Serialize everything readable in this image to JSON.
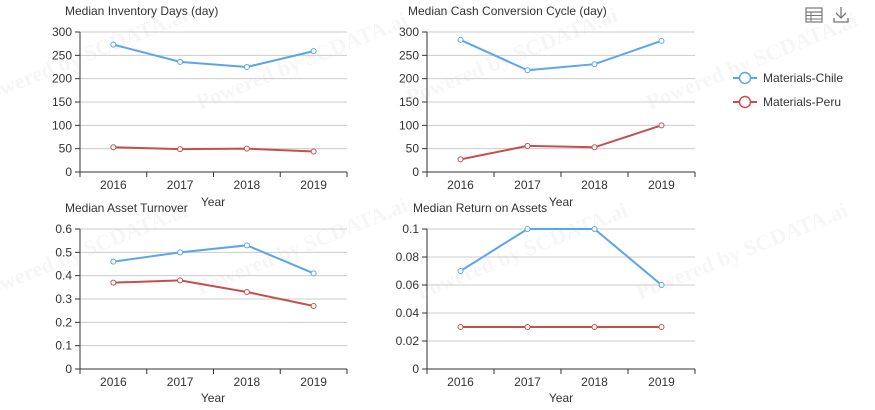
{
  "watermark": "Powered by SCDATA.ai",
  "toolbar": {
    "icons": [
      "data-view-icon",
      "download-icon"
    ]
  },
  "legend": [
    {
      "name": "Materials-Chile",
      "color": "#5aa5ec"
    },
    {
      "name": "Materials-Peru",
      "color": "#c4504e"
    }
  ],
  "chart_data": [
    {
      "type": "line",
      "title": "Median Inventory Days (day)",
      "xlabel": "Year",
      "ylabel": "",
      "categories": [
        "2016",
        "2017",
        "2018",
        "2019"
      ],
      "ylim": [
        0,
        300
      ],
      "yticks": [
        "0",
        "50",
        "100",
        "150",
        "200",
        "250",
        "300"
      ],
      "grid": true,
      "series": [
        {
          "name": "Materials-Chile",
          "values": [
            273,
            236,
            225,
            259
          ]
        },
        {
          "name": "Materials-Peru",
          "values": [
            53,
            49,
            50,
            44
          ]
        }
      ]
    },
    {
      "type": "line",
      "title": "Median Cash Conversion Cycle (day)",
      "xlabel": "Year",
      "ylabel": "",
      "categories": [
        "2016",
        "2017",
        "2018",
        "2019"
      ],
      "ylim": [
        0,
        300
      ],
      "yticks": [
        "0",
        "50",
        "100",
        "150",
        "200",
        "250",
        "300"
      ],
      "grid": true,
      "series": [
        {
          "name": "Materials-Chile",
          "values": [
            283,
            218,
            231,
            281
          ]
        },
        {
          "name": "Materials-Peru",
          "values": [
            27,
            56,
            53,
            100
          ]
        }
      ]
    },
    {
      "type": "line",
      "title": "Median Asset Turnover",
      "xlabel": "Year",
      "ylabel": "",
      "categories": [
        "2016",
        "2017",
        "2018",
        "2019"
      ],
      "ylim": [
        0,
        0.6
      ],
      "yticks": [
        "0",
        "0.1",
        "0.2",
        "0.3",
        "0.4",
        "0.5",
        "0.6"
      ],
      "grid": true,
      "series": [
        {
          "name": "Materials-Chile",
          "values": [
            0.46,
            0.5,
            0.53,
            0.41
          ]
        },
        {
          "name": "Materials-Peru",
          "values": [
            0.37,
            0.38,
            0.33,
            0.27
          ]
        }
      ]
    },
    {
      "type": "line",
      "title": "Median Return on Assets",
      "xlabel": "Year",
      "ylabel": "",
      "categories": [
        "2016",
        "2017",
        "2018",
        "2019"
      ],
      "ylim": [
        0,
        0.1
      ],
      "yticks": [
        "0",
        "0.02",
        "0.04",
        "0.06",
        "0.08",
        "0.1"
      ],
      "grid": true,
      "series": [
        {
          "name": "Materials-Chile",
          "values": [
            0.07,
            0.1,
            0.1,
            0.06
          ]
        },
        {
          "name": "Materials-Peru",
          "values": [
            0.03,
            0.03,
            0.03,
            0.03
          ]
        }
      ]
    }
  ]
}
